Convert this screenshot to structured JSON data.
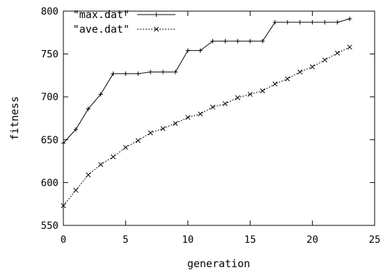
{
  "chart_data": {
    "type": "line",
    "title": "",
    "xlabel": "generation",
    "ylabel": "fitness",
    "xlim": [
      0,
      25
    ],
    "ylim": [
      550,
      800
    ],
    "xticks": [
      0,
      5,
      10,
      15,
      20,
      25
    ],
    "yticks": [
      550,
      600,
      650,
      700,
      750,
      800
    ],
    "grid": false,
    "legend_position": "top-left",
    "x": [
      0,
      1,
      2,
      3,
      4,
      5,
      6,
      7,
      8,
      9,
      10,
      11,
      12,
      13,
      14,
      15,
      16,
      17,
      18,
      19,
      20,
      21,
      22,
      23
    ],
    "series": [
      {
        "name": "\"max.dat\"",
        "style": "solid",
        "marker": "plus",
        "values": [
          646,
          662,
          686,
          703,
          727,
          727,
          727,
          729,
          729,
          729,
          754,
          754,
          765,
          765,
          765,
          765,
          765,
          787,
          787,
          787,
          787,
          787,
          787,
          791
        ]
      },
      {
        "name": "\"ave.dat\"",
        "style": "dotted",
        "marker": "cross",
        "values": [
          573,
          591,
          609,
          621,
          630,
          641,
          649,
          658,
          663,
          669,
          676,
          680,
          688,
          692,
          699,
          703,
          707,
          715,
          721,
          729,
          735,
          743,
          751,
          758
        ]
      }
    ]
  }
}
